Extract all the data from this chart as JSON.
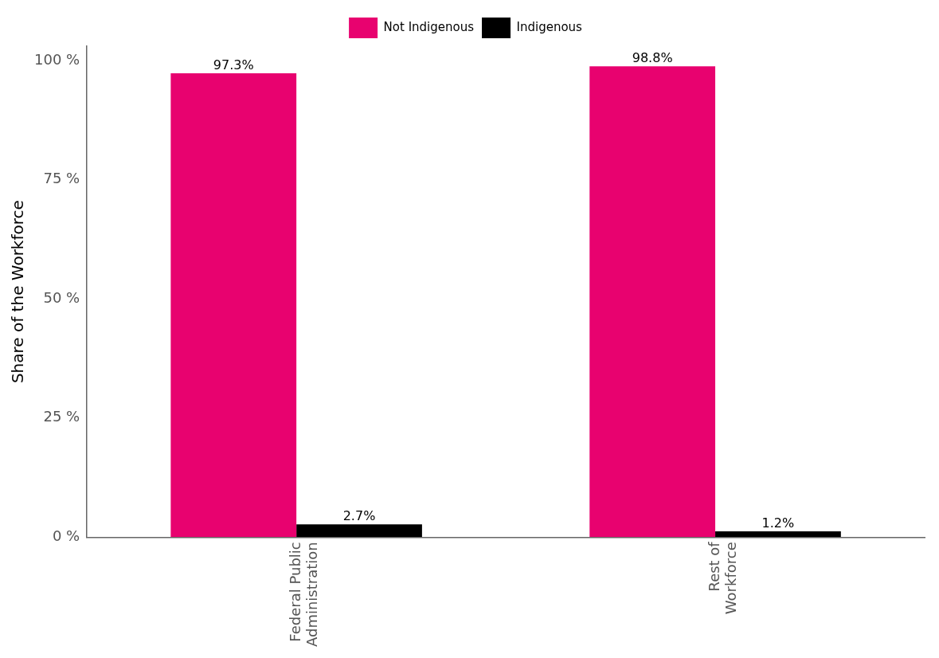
{
  "chart_data": {
    "type": "bar",
    "ylabel": "Share of the Workforce",
    "categories": [
      "Federal Public Administration",
      "Rest of Workforce"
    ],
    "series": [
      {
        "name": "Not Indigenous",
        "color": "#e8026f",
        "values": [
          97.3,
          98.8
        ],
        "value_labels": [
          "97.3%",
          "98.8%"
        ]
      },
      {
        "name": "Indigenous",
        "color": "#000000",
        "values": [
          2.7,
          1.2
        ],
        "value_labels": [
          "2.7%",
          "1.2%"
        ]
      }
    ],
    "ylim": [
      0,
      103
    ],
    "yticks": [
      {
        "value": 0,
        "label": "0 %"
      },
      {
        "value": 25,
        "label": "25 %"
      },
      {
        "value": 50,
        "label": "50 %"
      },
      {
        "value": 75,
        "label": "75 %"
      },
      {
        "value": 100,
        "label": "100 %"
      }
    ],
    "grid": false,
    "legend": "top"
  }
}
